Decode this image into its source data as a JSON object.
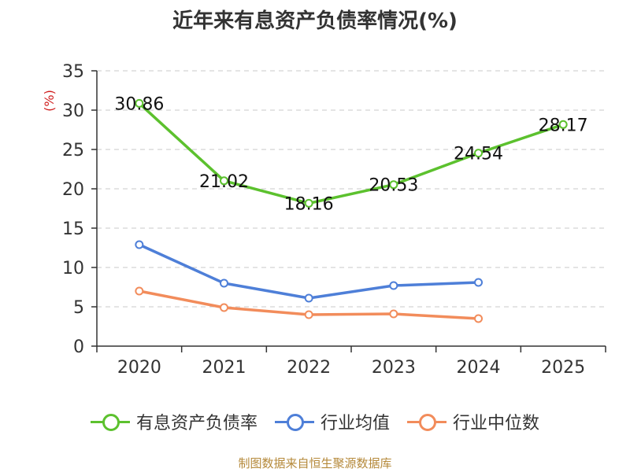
{
  "chart_data": {
    "type": "line",
    "title": "近年来有息资产负债率情况(%)",
    "ylabel": "(%)",
    "xlabel": "",
    "categories": [
      "2020",
      "2021",
      "2022",
      "2023",
      "2024",
      "2025"
    ],
    "ylim": [
      0,
      35
    ],
    "yticks": [
      0,
      5,
      10,
      15,
      20,
      25,
      30,
      35
    ],
    "grid": true,
    "legend_position": "bottom",
    "series": [
      {
        "name": "有息资产负债率",
        "color": "#5cc12e",
        "values": [
          30.86,
          21.02,
          18.16,
          20.53,
          24.54,
          28.17
        ],
        "labels": [
          "30.86",
          "21.02",
          "18.16",
          "20.53",
          "24.54",
          "28.17"
        ]
      },
      {
        "name": "行业均值",
        "color": "#4e7fd8",
        "values": [
          12.9,
          8.0,
          6.1,
          7.7,
          8.1,
          null
        ]
      },
      {
        "name": "行业中位数",
        "color": "#f28c5b",
        "values": [
          7.0,
          4.9,
          4.0,
          4.1,
          3.5,
          null
        ]
      }
    ]
  },
  "footer": "制图数据来自恒生聚源数据库"
}
